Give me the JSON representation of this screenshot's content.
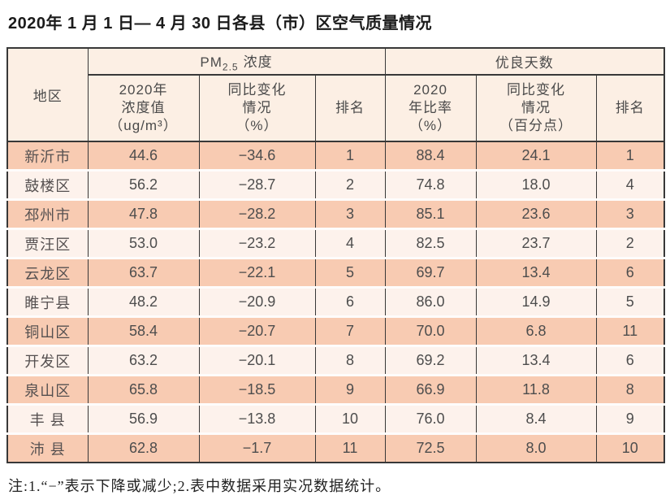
{
  "title": "2020年 1 月 1 日— 4 月 30 日各县（市）区空气质量情况",
  "table": {
    "header": {
      "region": "地区",
      "pm_group": {
        "prefix": "PM",
        "sub": "2.5",
        "suffix": "浓度"
      },
      "good_days_group": "优良天数",
      "sub": [
        "2020年\n浓度值\n（ug/m³）",
        "同比变化\n情况\n（%）",
        "排名",
        "2020\n年比率\n（%）",
        "同比变化\n情况\n（百分点）",
        "排名"
      ]
    },
    "rows": [
      [
        "新沂市",
        "44.6",
        "−34.6",
        "1",
        "88.4",
        "24.1",
        "1"
      ],
      [
        "鼓楼区",
        "56.2",
        "−28.7",
        "2",
        "74.8",
        "18.0",
        "4"
      ],
      [
        "邳州市",
        "47.8",
        "−28.2",
        "3",
        "85.1",
        "23.6",
        "3"
      ],
      [
        "贾汪区",
        "53.0",
        "−23.2",
        "4",
        "82.5",
        "23.7",
        "2"
      ],
      [
        "云龙区",
        "63.7",
        "−22.1",
        "5",
        "69.7",
        "13.4",
        "6"
      ],
      [
        "睢宁县",
        "48.2",
        "−20.9",
        "6",
        "86.0",
        "14.9",
        "5"
      ],
      [
        "铜山区",
        "58.4",
        "−20.7",
        "7",
        "70.0",
        "6.8",
        "11"
      ],
      [
        "开发区",
        "63.2",
        "−20.1",
        "8",
        "69.2",
        "13.4",
        "6"
      ],
      [
        "泉山区",
        "65.8",
        "−18.5",
        "9",
        "66.9",
        "11.8",
        "8"
      ],
      [
        "丰 县",
        "56.9",
        "−13.8",
        "10",
        "76.0",
        "8.4",
        "9"
      ],
      [
        "沛 县",
        "62.8",
        "−1.7",
        "11",
        "72.5",
        "8.0",
        "10"
      ]
    ]
  },
  "note": "注:1.“−”表示下降或减少;2.表中数据采用实况数据统计。",
  "colors": {
    "row_odd_bg": "#f8cbb2",
    "row_even_bg": "#fdf2ec",
    "header_bg": "#fcefe4",
    "border": "#383838",
    "text": "#4d4d4d"
  }
}
